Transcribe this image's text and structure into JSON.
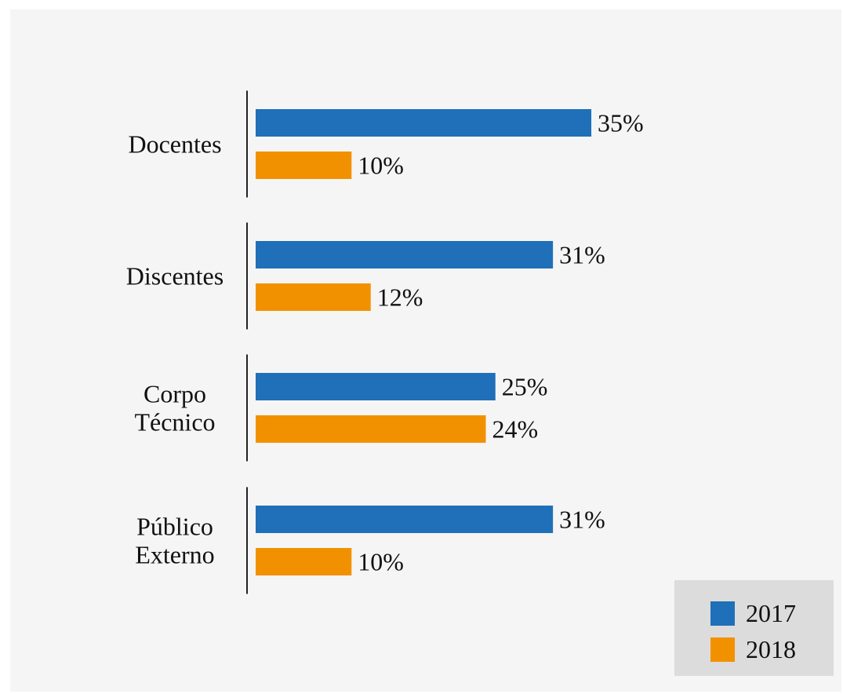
{
  "chart_data": {
    "type": "bar",
    "orientation": "horizontal",
    "categories": [
      [
        "Docentes"
      ],
      [
        "Discentes"
      ],
      [
        "Corpo",
        "Técnico"
      ],
      [
        "Público",
        "Externo"
      ]
    ],
    "series": [
      {
        "name": "2017",
        "color": "#1f70b8",
        "values": [
          35,
          31,
          25,
          31
        ]
      },
      {
        "name": "2018",
        "color": "#f29100",
        "values": [
          10,
          12,
          24,
          10
        ]
      }
    ],
    "value_labels": {
      "2017": [
        "35%",
        "31%",
        "25%",
        "31%"
      ],
      "2018": [
        "10%",
        "12%",
        "24%",
        "10%"
      ]
    },
    "value_unit": "%",
    "xlim": [
      0,
      35
    ],
    "grid": false,
    "legend": {
      "position": "bottom-right",
      "background": "#dcdcdc",
      "entries": [
        "2017",
        "2018"
      ]
    },
    "background": "#f5f5f5"
  }
}
